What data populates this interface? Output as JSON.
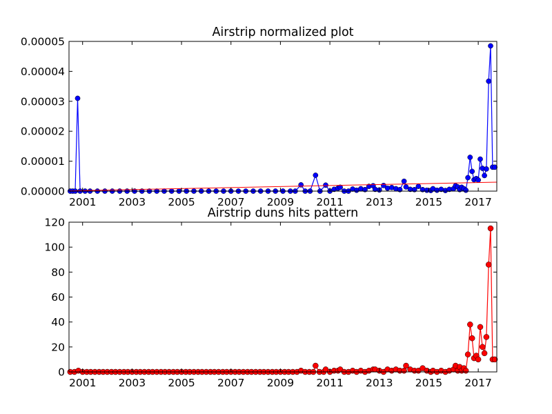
{
  "chart_data": [
    {
      "type": "line",
      "title": "Airstrip normalized plot",
      "xlabel": "",
      "ylabel": "",
      "xlim": [
        2000.45,
        2017.75
      ],
      "ylim": [
        0,
        5e-05
      ],
      "x_ticks": [
        2001,
        2003,
        2005,
        2007,
        2009,
        2011,
        2013,
        2015,
        2017
      ],
      "x_tick_labels": [
        "2001",
        "2003",
        "2005",
        "2007",
        "2009",
        "2011",
        "2013",
        "2015",
        "2017"
      ],
      "y_ticks": [
        0,
        1e-05,
        2e-05,
        3e-05,
        4e-05,
        5e-05
      ],
      "y_tick_labels": [
        "0.00000",
        "0.00001",
        "0.00002",
        "0.00003",
        "0.00004",
        "0.00005"
      ],
      "grid": false,
      "colors": {
        "series": "#0000ff",
        "trend": "#ff0000"
      },
      "series": [
        {
          "style": "line-with-markers",
          "x": [
            2000.5,
            2000.6,
            2000.7,
            2000.8,
            2000.9,
            2001.1,
            2001.3,
            2001.6,
            2001.9,
            2002.2,
            2002.5,
            2002.8,
            2003.1,
            2003.4,
            2003.7,
            2004.0,
            2004.3,
            2004.6,
            2004.9,
            2005.2,
            2005.5,
            2005.8,
            2006.1,
            2006.4,
            2006.7,
            2007.0,
            2007.3,
            2007.6,
            2007.9,
            2008.2,
            2008.5,
            2008.8,
            2009.1,
            2009.4,
            2009.6,
            2009.83,
            2010.0,
            2010.2,
            2010.42,
            2010.6,
            2010.83,
            2011.0,
            2011.17,
            2011.33,
            2011.42,
            2011.58,
            2011.75,
            2011.92,
            2012.08,
            2012.25,
            2012.42,
            2012.58,
            2012.75,
            2012.83,
            2013.0,
            2013.17,
            2013.33,
            2013.5,
            2013.67,
            2013.83,
            2014.0,
            2014.08,
            2014.25,
            2014.42,
            2014.58,
            2014.75,
            2014.92,
            2015.08,
            2015.17,
            2015.33,
            2015.5,
            2015.67,
            2015.83,
            2016.0,
            2016.08,
            2016.17,
            2016.25,
            2016.33,
            2016.42,
            2016.5,
            2016.58,
            2016.67,
            2016.75,
            2016.83,
            2016.92,
            2017.0,
            2017.08,
            2017.17,
            2017.25,
            2017.33,
            2017.42,
            2017.5,
            2017.58,
            2017.67
          ],
          "y": [
            0,
            0,
            0,
            3.1e-05,
            0,
            0,
            0,
            0,
            0,
            0,
            0,
            0,
            0,
            0,
            0,
            0,
            0,
            0,
            0,
            0,
            0,
            0,
            0,
            0,
            0,
            0,
            0,
            0,
            0,
            0,
            0,
            0,
            0,
            0,
            0,
            2.1e-06,
            0,
            0,
            5.3e-06,
            0,
            2e-06,
            0,
            6e-07,
            1e-06,
            1.3e-06,
            0,
            0,
            7e-07,
            3e-07,
            8e-07,
            5e-07,
            1.6e-06,
            1.8e-06,
            6e-07,
            4e-07,
            1.9e-06,
            1e-06,
            1.2e-06,
            8e-07,
            5e-07,
            3.3e-06,
            1.4e-06,
            6e-07,
            5e-07,
            1.6e-06,
            5e-07,
            3e-07,
            2e-07,
            8e-07,
            3e-07,
            6e-07,
            2e-07,
            6e-07,
            8e-07,
            1.8e-06,
            1.4e-06,
            5e-07,
            1.3e-06,
            8e-07,
            3e-07,
            4.5e-06,
            1.13e-05,
            6.6e-06,
            3.8e-06,
            4.2e-06,
            3.7e-06,
            1.07e-05,
            7.6e-06,
            5.2e-06,
            7.4e-06,
            3.67e-05,
            4.85e-05,
            8e-06,
            8e-06
          ]
        },
        {
          "style": "trend-line",
          "x": [
            2000.45,
            2017.75
          ],
          "y": [
            1e-07,
            3e-06
          ]
        }
      ]
    },
    {
      "type": "line",
      "title": "Airstrip duns hits pattern",
      "xlabel": "",
      "ylabel": "",
      "xlim": [
        2000.45,
        2017.75
      ],
      "ylim": [
        0,
        120
      ],
      "x_ticks": [
        2001,
        2003,
        2005,
        2007,
        2009,
        2011,
        2013,
        2015,
        2017
      ],
      "x_tick_labels": [
        "2001",
        "2003",
        "2005",
        "2007",
        "2009",
        "2011",
        "2013",
        "2015",
        "2017"
      ],
      "y_ticks": [
        0,
        20,
        40,
        60,
        80,
        100,
        120
      ],
      "y_tick_labels": [
        "0",
        "20",
        "40",
        "60",
        "80",
        "100",
        "120"
      ],
      "grid": false,
      "colors": {
        "series": "#ff0000"
      },
      "series": [
        {
          "style": "line-with-markers",
          "x": [
            2000.5,
            2000.67,
            2000.83,
            2001.0,
            2001.17,
            2001.33,
            2001.5,
            2001.67,
            2001.83,
            2002.0,
            2002.17,
            2002.33,
            2002.5,
            2002.67,
            2002.83,
            2003.0,
            2003.17,
            2003.33,
            2003.5,
            2003.67,
            2003.83,
            2004.0,
            2004.17,
            2004.33,
            2004.5,
            2004.67,
            2004.83,
            2005.0,
            2005.17,
            2005.33,
            2005.5,
            2005.67,
            2005.83,
            2006.0,
            2006.17,
            2006.33,
            2006.5,
            2006.67,
            2006.83,
            2007.0,
            2007.17,
            2007.33,
            2007.5,
            2007.67,
            2007.83,
            2008.0,
            2008.17,
            2008.33,
            2008.5,
            2008.67,
            2008.83,
            2009.0,
            2009.17,
            2009.33,
            2009.5,
            2009.67,
            2009.83,
            2010.0,
            2010.17,
            2010.33,
            2010.42,
            2010.58,
            2010.75,
            2010.83,
            2011.0,
            2011.17,
            2011.33,
            2011.42,
            2011.58,
            2011.75,
            2011.92,
            2012.08,
            2012.25,
            2012.42,
            2012.58,
            2012.75,
            2012.83,
            2013.0,
            2013.17,
            2013.33,
            2013.5,
            2013.67,
            2013.83,
            2014.0,
            2014.08,
            2014.25,
            2014.42,
            2014.58,
            2014.75,
            2014.92,
            2015.08,
            2015.17,
            2015.33,
            2015.5,
            2015.67,
            2015.83,
            2016.0,
            2016.08,
            2016.17,
            2016.25,
            2016.33,
            2016.42,
            2016.5,
            2016.58,
            2016.67,
            2016.75,
            2016.83,
            2016.92,
            2017.0,
            2017.08,
            2017.17,
            2017.25,
            2017.33,
            2017.42,
            2017.5,
            2017.58,
            2017.67
          ],
          "y": [
            0,
            0,
            1,
            0,
            0,
            0,
            0,
            0,
            0,
            0,
            0,
            0,
            0,
            0,
            0,
            0,
            0,
            0,
            0,
            0,
            0,
            0,
            0,
            0,
            0,
            0,
            0,
            0,
            0,
            0,
            0,
            0,
            0,
            0,
            0,
            0,
            0,
            0,
            0,
            0,
            0,
            0,
            0,
            0,
            0,
            0,
            0,
            0,
            0,
            0,
            0,
            0,
            0,
            0,
            0,
            0,
            1,
            0,
            0,
            0,
            5,
            0,
            0,
            2,
            0,
            1,
            1,
            2,
            0,
            0,
            1,
            0,
            1,
            0,
            1,
            2,
            2,
            1,
            0,
            2,
            1,
            2,
            1,
            1,
            5,
            2,
            1,
            1,
            3,
            1,
            0,
            1,
            0,
            1,
            0,
            1,
            2,
            5,
            1,
            4,
            1,
            3,
            1,
            14,
            38,
            27,
            11,
            13,
            10,
            36,
            20,
            15,
            28,
            86,
            115,
            10,
            10
          ]
        }
      ]
    }
  ]
}
